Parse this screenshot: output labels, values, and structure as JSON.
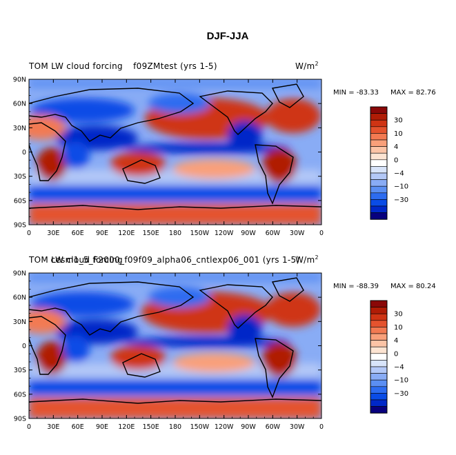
{
  "figure_title": "DJF-JJA",
  "palette": [
    "#08007e",
    "#0028c8",
    "#0a4ce6",
    "#2d6cf0",
    "#5b8ff3",
    "#89acf5",
    "#b3c8f7",
    "#d8e4fa",
    "#ffffff",
    "#fde4d2",
    "#fcc4a6",
    "#f9a07a",
    "#f27a52",
    "#e4532e",
    "#cf3414",
    "#b01c06",
    "#8a0808"
  ],
  "chart_data": [
    {
      "type": "heatmap",
      "title_left": "TOM LW cloud forcing",
      "title_center": "f09ZMtest (yrs 1-5)",
      "units": "W/m",
      "units_sup": "2",
      "min_label": "MIN = -83.33",
      "max_label": "MAX =  82.76",
      "x_ticks": [
        "0",
        "30E",
        "60E",
        "90E",
        "120E",
        "150E",
        "180",
        "150W",
        "120W",
        "90W",
        "60W",
        "30W",
        "0"
      ],
      "y_ticks": [
        "90N",
        "60N",
        "30N",
        "0",
        "30S",
        "60S",
        "90S"
      ],
      "xlim": [
        0,
        360
      ],
      "ylim": [
        -90,
        90
      ],
      "colorbar_levels": [
        "30",
        "10",
        "4",
        "0",
        "-4",
        "-10",
        "-30"
      ]
    },
    {
      "type": "heatmap",
      "title_left": "TOM LW cloud forcing",
      "title_center": "cesm1_5_F2000_f09f09_alpha06_cntlexp06_001 (yrs 1-5)",
      "units": "W/m",
      "units_sup": "2",
      "min_label": "MIN = -88.39",
      "max_label": "MAX =  80.24",
      "x_ticks": [
        "0",
        "30E",
        "60E",
        "90E",
        "120E",
        "150E",
        "180",
        "150W",
        "120W",
        "90W",
        "60W",
        "30W",
        "0"
      ],
      "y_ticks": [
        "90N",
        "60N",
        "30N",
        "0",
        "30S",
        "60S",
        "90S"
      ],
      "xlim": [
        0,
        360
      ],
      "ylim": [
        -90,
        90
      ],
      "colorbar_levels": [
        "30",
        "10",
        "4",
        "0",
        "-4",
        "-10",
        "-30"
      ]
    }
  ]
}
